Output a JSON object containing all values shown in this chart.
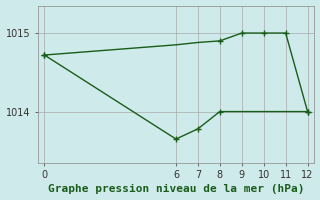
{
  "title": "Graphe pression niveau de la mer (hPa)",
  "background_color": "#ceeaea",
  "grid_color": "#aaaaaa",
  "line_color": "#1a5c1a",
  "xlim": [
    -0.3,
    12.3
  ],
  "ylim": [
    1013.35,
    1015.35
  ],
  "yticks": [
    1014,
    1015
  ],
  "xticks": [
    0,
    6,
    7,
    8,
    9,
    10,
    11,
    12
  ],
  "series1_x": [
    0,
    6,
    7,
    8,
    9,
    10,
    11,
    12
  ],
  "series1_y": [
    1014.72,
    1014.85,
    1014.88,
    1014.9,
    1015.0,
    1015.0,
    1015.0,
    1014.0
  ],
  "series2_x": [
    0,
    6,
    7,
    8,
    12
  ],
  "series2_y": [
    1014.72,
    1013.65,
    1013.78,
    1014.0,
    1014.0
  ],
  "marker": "+",
  "marker_size": 5,
  "line_width": 1.0,
  "title_fontsize": 8,
  "tick_fontsize": 7,
  "title_color": "#1a5c1a"
}
